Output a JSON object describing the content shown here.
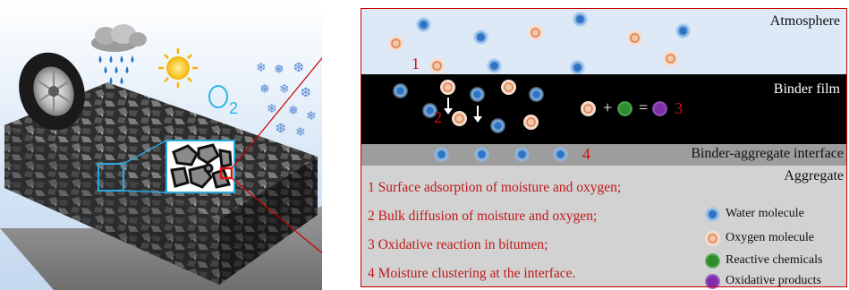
{
  "zones": {
    "atmosphere": "Atmosphere",
    "binder_film": "Binder film",
    "interface": "Binder-aggregate interface",
    "aggregate": "Aggregate"
  },
  "markers": {
    "m1": "1",
    "m2": "2",
    "m3": "3",
    "m4": "4"
  },
  "reaction": {
    "plus": "+",
    "equals": "="
  },
  "oxygen_symbol": "O",
  "oxygen_subscript": "2",
  "steps": [
    "1 Surface adsorption of moisture and oxygen;",
    "2 Bulk diffusion of moisture and oxygen;",
    "3 Oxidative reaction in bitumen;",
    "4 Moisture clustering at the interface."
  ],
  "legend": [
    {
      "label": "Water molecule",
      "kind": "water"
    },
    {
      "label": "Oxygen molecule",
      "kind": "oxygen"
    },
    {
      "label": "Reactive chemicals",
      "kind": "reactive"
    },
    {
      "label": "Oxidative products",
      "kind": "product"
    }
  ],
  "colors": {
    "accent_red": "#cc0000",
    "water": "#2f74c4",
    "oxygen": "#d46a3b",
    "reactive": "#2e8b2e",
    "product": "#7c2fa6",
    "atmosphere_bg": "#dde9f6",
    "binder_bg": "#000000",
    "interface_bg": "#9d9d9d",
    "aggregate_bg": "#d2d2d2"
  }
}
